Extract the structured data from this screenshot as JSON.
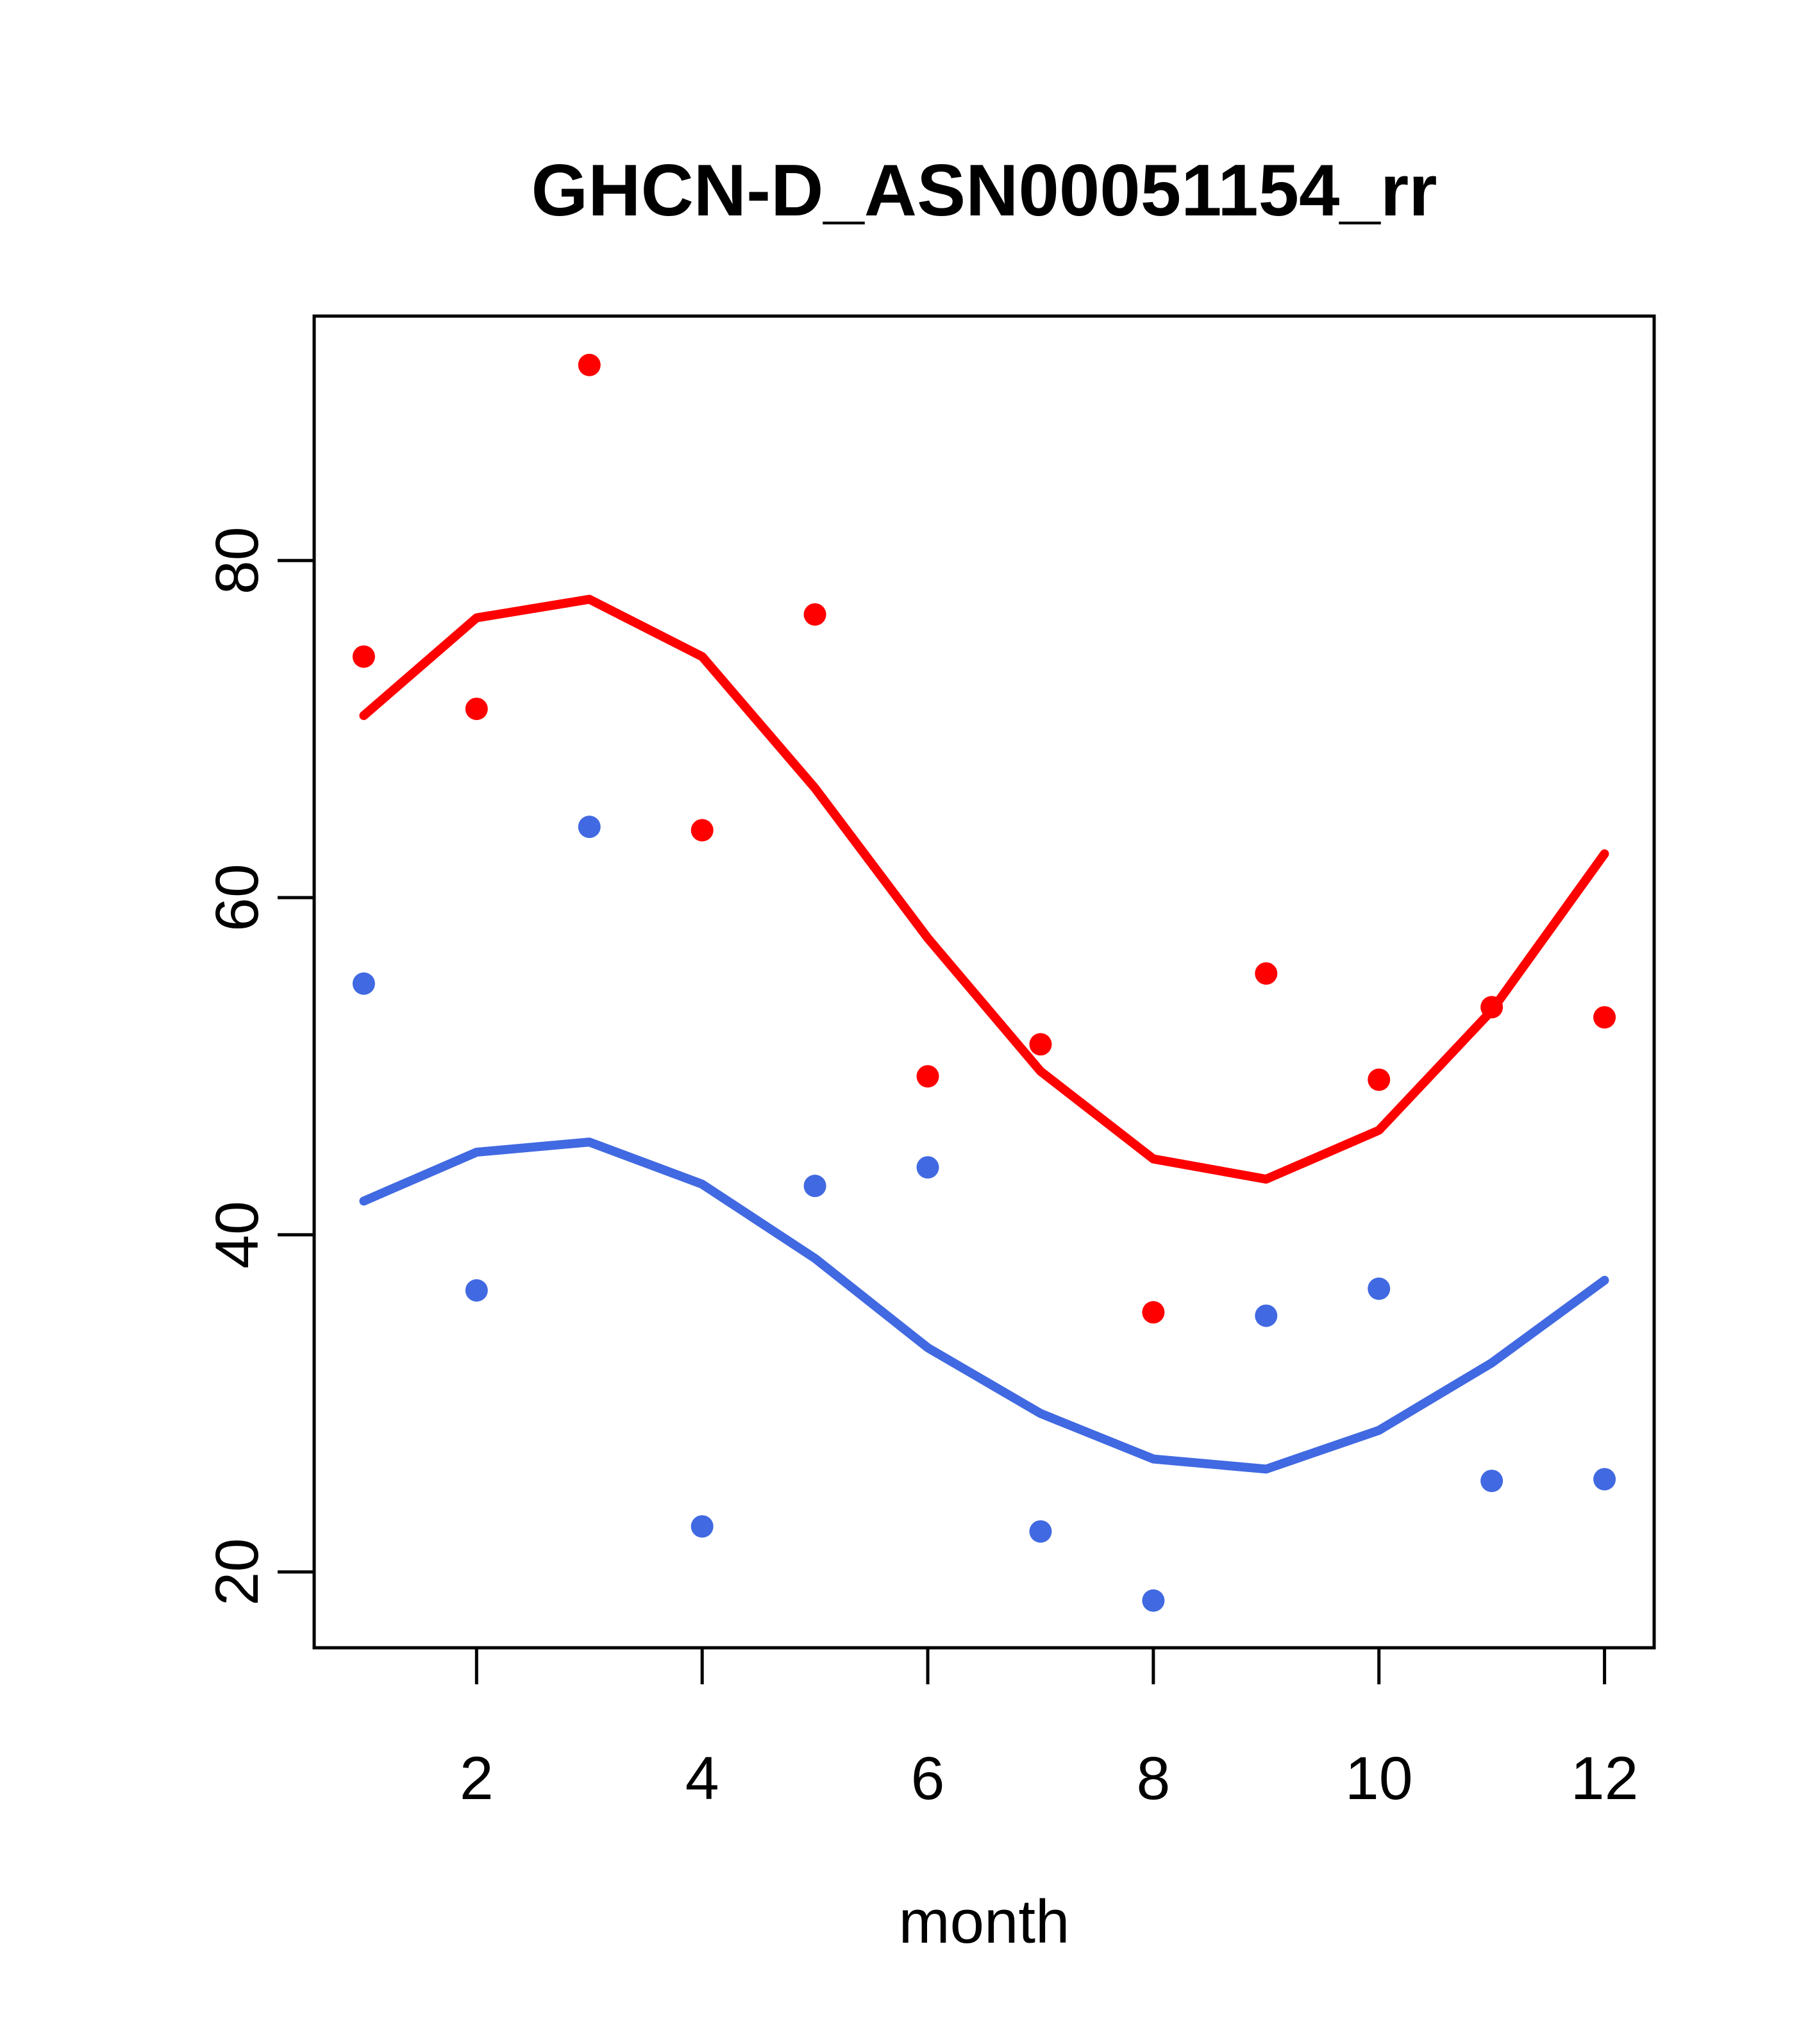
{
  "figure": {
    "background": "#ffffff",
    "title": "GHCN-D_ASN00051154_rr",
    "xlabel": "month"
  },
  "chart_data": {
    "type": "scatter",
    "title": "GHCN-D_ASN00051154_rr",
    "xlabel": "month",
    "ylabel": "",
    "x": [
      1,
      2,
      3,
      4,
      5,
      6,
      7,
      8,
      9,
      10,
      11,
      12
    ],
    "series": [
      {
        "name": "red-points",
        "kind": "points",
        "color": "#FF0000",
        "values": [
          74.3,
          71.2,
          91.6,
          64.0,
          76.8,
          49.4,
          51.3,
          35.4,
          55.5,
          49.2,
          53.5,
          52.9
        ]
      },
      {
        "name": "blue-points",
        "kind": "points",
        "color": "#4169E1",
        "values": [
          54.9,
          36.7,
          64.2,
          22.7,
          42.9,
          44.0,
          22.4,
          18.3,
          35.2,
          36.8,
          25.4,
          25.5
        ]
      },
      {
        "name": "red-trend-line",
        "kind": "line",
        "color": "#FF0000",
        "values": [
          70.8,
          76.6,
          77.7,
          74.3,
          66.5,
          57.6,
          49.7,
          44.5,
          43.3,
          46.2,
          53.3,
          62.6
        ]
      },
      {
        "name": "blue-trend-line",
        "kind": "line",
        "color": "#4169E1",
        "values": [
          42.0,
          44.9,
          45.5,
          43.0,
          38.6,
          33.3,
          29.4,
          26.7,
          26.1,
          28.4,
          32.4,
          37.3
        ]
      }
    ],
    "xticks": [
      2,
      4,
      6,
      8,
      10,
      12
    ],
    "yticks": [
      20,
      40,
      60,
      80
    ],
    "xlim": [
      0.56,
      12.44
    ],
    "ylim": [
      15.5,
      94.5
    ],
    "grid": false,
    "legend_position": "none",
    "colors": {
      "red": "#FF0000",
      "blue": "#4169E1",
      "axis": "#000000"
    }
  }
}
